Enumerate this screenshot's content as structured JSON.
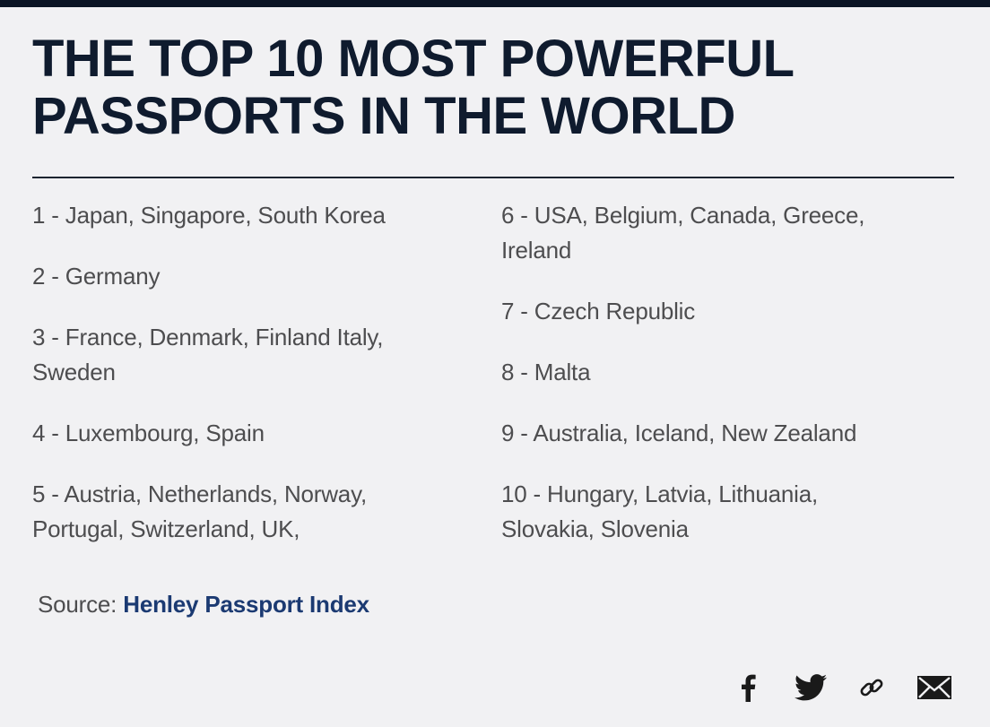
{
  "title": {
    "line1": "THE TOP 10 MOST POWERFUL",
    "line2": "PASSPORTS IN THE WORLD"
  },
  "rankings": {
    "left": [
      "1 - Japan, Singapore, South Korea",
      "2 - Germany",
      "3 - France, Denmark, Finland Italy, Sweden",
      "4 - Luxembourg, Spain",
      "5 - Austria, Netherlands, Norway, Portugal, Switzerland, UK,"
    ],
    "right": [
      "6 - USA,  Belgium, Canada, Greece, Ireland",
      "7 - Czech Republic",
      "8 - Malta",
      "9 - Australia, Iceland, New Zealand",
      "10 - Hungary, Latvia, Lithuania, Slovakia, Slovenia"
    ]
  },
  "source": {
    "label": "Source:",
    "link_text": "Henley Passport Index"
  },
  "share": {
    "icons": [
      "facebook-icon",
      "twitter-icon",
      "link-icon",
      "email-icon"
    ],
    "icon_color": "#1a1a1a"
  },
  "colors": {
    "title": "#0f1b2e",
    "body_text": "#4d4d4f",
    "link": "#1b3a72",
    "background": "#f1f1f3"
  }
}
